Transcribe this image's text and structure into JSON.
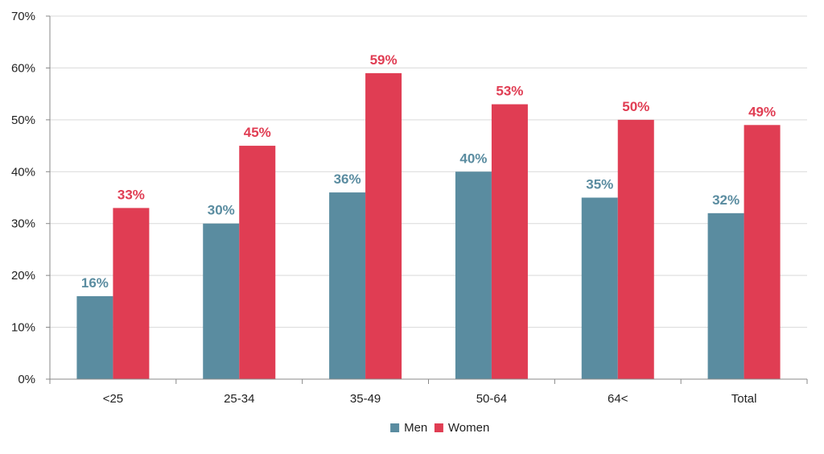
{
  "chart_data": {
    "type": "bar",
    "categories": [
      "<25",
      "25-34",
      "35-49",
      "50-64",
      "64<",
      "Total"
    ],
    "series": [
      {
        "name": "Men",
        "color": "#5a8ca0",
        "values": [
          16,
          30,
          36,
          40,
          35,
          32
        ],
        "labels": [
          "16%",
          "30%",
          "36%",
          "40%",
          "35%",
          "32%"
        ]
      },
      {
        "name": "Women",
        "color": "#e03d53",
        "values": [
          33,
          45,
          59,
          53,
          50,
          49
        ],
        "labels": [
          "33%",
          "45%",
          "59%",
          "53%",
          "50%",
          "49%"
        ]
      }
    ],
    "ylim": [
      0,
      70
    ],
    "yticks": [
      0,
      10,
      20,
      30,
      40,
      50,
      60,
      70
    ],
    "ytick_labels": [
      "0%",
      "10%",
      "20%",
      "30%",
      "40%",
      "50%",
      "60%",
      "70%"
    ],
    "grid": true,
    "legend_position": "bottom",
    "title": "",
    "xlabel": "",
    "ylabel": ""
  }
}
